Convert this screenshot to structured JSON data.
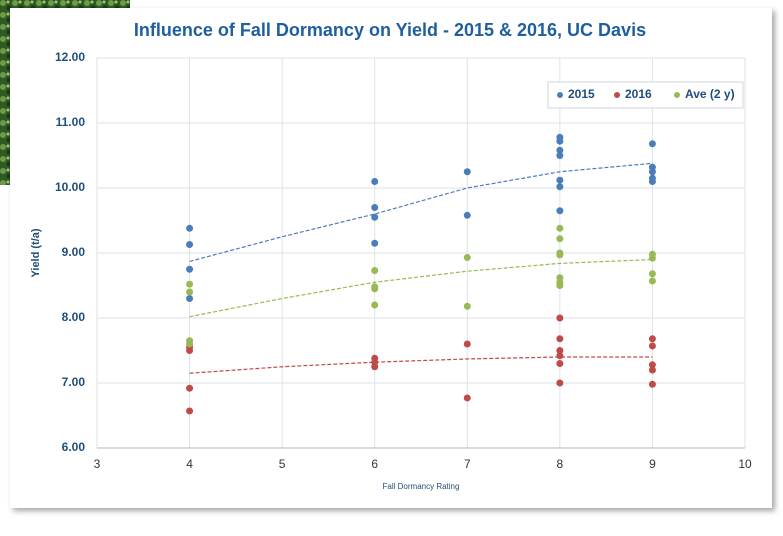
{
  "chart_data": {
    "type": "scatter",
    "title": "Influence of Fall Dormancy on Yield - 2015 & 2016, UC Davis",
    "x_label": "Fall Dormancy Rating",
    "y_label": "Yield (t/a)",
    "xlim": [
      3,
      10
    ],
    "xticks": [
      3,
      4,
      5,
      6,
      7,
      8,
      9,
      10
    ],
    "ylim": [
      6,
      12
    ],
    "yticks": [
      {
        "value": 6,
        "label": "6.00"
      },
      {
        "value": 7,
        "label": "7.00"
      },
      {
        "value": 8,
        "label": "8.00"
      },
      {
        "value": 9,
        "label": "9.00"
      },
      {
        "value": 10,
        "label": "10.00"
      },
      {
        "value": 11,
        "label": "11.00"
      },
      {
        "value": 12,
        "label": "12.00"
      }
    ],
    "grid": true,
    "legend": "top-right",
    "trend_x": [
      4,
      5,
      6,
      7,
      8,
      9
    ],
    "series": [
      {
        "name": "2015",
        "color": "#4a7ebb",
        "x": [
          4,
          4,
          4,
          4,
          6,
          6,
          6,
          6,
          7,
          7,
          8,
          8,
          8,
          8,
          8,
          8,
          8,
          9,
          9,
          9,
          9,
          9
        ],
        "values": [
          9.38,
          9.13,
          8.75,
          8.3,
          10.1,
          9.7,
          9.55,
          9.15,
          10.25,
          9.58,
          10.78,
          10.72,
          10.58,
          10.5,
          10.12,
          10.02,
          9.65,
          10.68,
          10.32,
          10.25,
          10.15,
          10.1
        ],
        "trend": [
          8.87,
          9.25,
          9.6,
          10.0,
          10.25,
          10.38
        ]
      },
      {
        "name": "2016",
        "color": "#be4b48",
        "x": [
          4,
          4,
          4,
          4,
          6,
          6,
          6,
          7,
          7,
          8,
          8,
          8,
          8,
          8,
          8,
          9,
          9,
          9,
          9,
          9
        ],
        "values": [
          7.55,
          7.5,
          6.92,
          6.57,
          7.38,
          7.32,
          7.25,
          7.6,
          6.77,
          8.0,
          7.68,
          7.5,
          7.42,
          7.3,
          7.0,
          7.68,
          7.57,
          7.28,
          7.2,
          6.98
        ],
        "trend": [
          7.15,
          7.25,
          7.32,
          7.37,
          7.4,
          7.4
        ]
      },
      {
        "name": "Ave (2 y)",
        "color": "#98b954",
        "x": [
          4,
          4,
          4,
          4,
          6,
          6,
          6,
          6,
          7,
          7,
          8,
          8,
          8,
          8,
          8,
          8,
          8,
          9,
          9,
          9,
          9
        ],
        "values": [
          8.52,
          8.4,
          7.65,
          7.6,
          8.73,
          8.48,
          8.45,
          8.2,
          8.93,
          8.18,
          9.38,
          9.22,
          9.0,
          8.97,
          8.62,
          8.55,
          8.5,
          8.98,
          8.92,
          8.68,
          8.57
        ],
        "trend": [
          8.02,
          8.3,
          8.55,
          8.72,
          8.84,
          8.9
        ]
      }
    ]
  }
}
